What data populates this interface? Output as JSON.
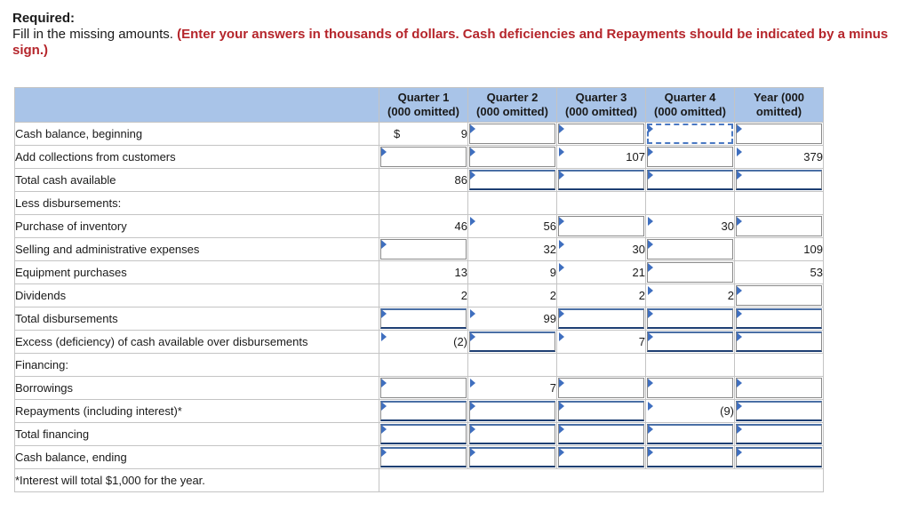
{
  "instructions": {
    "required": "Required:",
    "text": "Fill in the missing amounts. ",
    "highlight": "(Enter your answers in thousands of dollars. Cash deficiencies and Repayments should be indicated by a minus sign.)"
  },
  "columns": [
    "Quarter 1 (000 omitted)",
    "Quarter 2 (000 omitted)",
    "Quarter 3 (000 omitted)",
    "Quarter 4 (000 omitted)",
    "Year (000 omitted)"
  ],
  "column_lines": [
    [
      "Quarter 1",
      "(000 omitted)"
    ],
    [
      "Quarter 2",
      "(000 omitted)"
    ],
    [
      "Quarter 3",
      "(000 omitted)"
    ],
    [
      "Quarter 4",
      "(000 omitted)"
    ],
    [
      "Year (000",
      "omitted)"
    ]
  ],
  "currency_symbol": "$",
  "rows": [
    {
      "label": "Cash balance, beginning",
      "indent": false,
      "cells": [
        "9",
        null,
        null,
        null,
        null
      ]
    },
    {
      "label": "Add collections from customers",
      "indent": false,
      "cells": [
        null,
        null,
        "107",
        null,
        "379"
      ]
    },
    {
      "label": "Total cash available",
      "indent": false,
      "cells": [
        "86",
        null,
        null,
        null,
        null
      ]
    },
    {
      "label": "Less disbursements:",
      "indent": false,
      "cells": [
        "",
        "",
        "",
        "",
        ""
      ]
    },
    {
      "label": "Purchase of inventory",
      "indent": true,
      "cells": [
        "46",
        "56",
        null,
        "30",
        null
      ]
    },
    {
      "label": "Selling and administrative expenses",
      "indent": true,
      "cells": [
        null,
        "32",
        "30",
        null,
        "109"
      ]
    },
    {
      "label": "Equipment purchases",
      "indent": true,
      "cells": [
        "13",
        "9",
        "21",
        null,
        "53"
      ]
    },
    {
      "label": "Dividends",
      "indent": true,
      "cells": [
        "2",
        "2",
        "2",
        "2",
        null
      ]
    },
    {
      "label": "Total disbursements",
      "indent": false,
      "cells": [
        null,
        "99",
        null,
        null,
        null
      ]
    },
    {
      "label": "Excess (deficiency) of cash available over disbursements",
      "indent": false,
      "cells": [
        "(2)",
        null,
        "7",
        null,
        null
      ]
    },
    {
      "label": "Financing:",
      "indent": false,
      "cells": [
        "",
        "",
        "",
        "",
        ""
      ]
    },
    {
      "label": "Borrowings",
      "indent": true,
      "cells": [
        null,
        "7",
        null,
        null,
        null
      ]
    },
    {
      "label": "Repayments (including interest)*",
      "indent": true,
      "cells": [
        null,
        null,
        null,
        "(9)",
        null
      ]
    },
    {
      "label": "Total financing",
      "indent": false,
      "cells": [
        null,
        null,
        null,
        null,
        null
      ]
    },
    {
      "label": "Cash balance, ending",
      "indent": false,
      "cells": [
        null,
        null,
        null,
        null,
        null
      ]
    }
  ],
  "footnote": "*Interest will total $1,000 for the year.",
  "colors": {
    "header_bg": "#a9c4e8",
    "highlight_text": "#b5252b",
    "input_marker": "#3f6fbf"
  }
}
